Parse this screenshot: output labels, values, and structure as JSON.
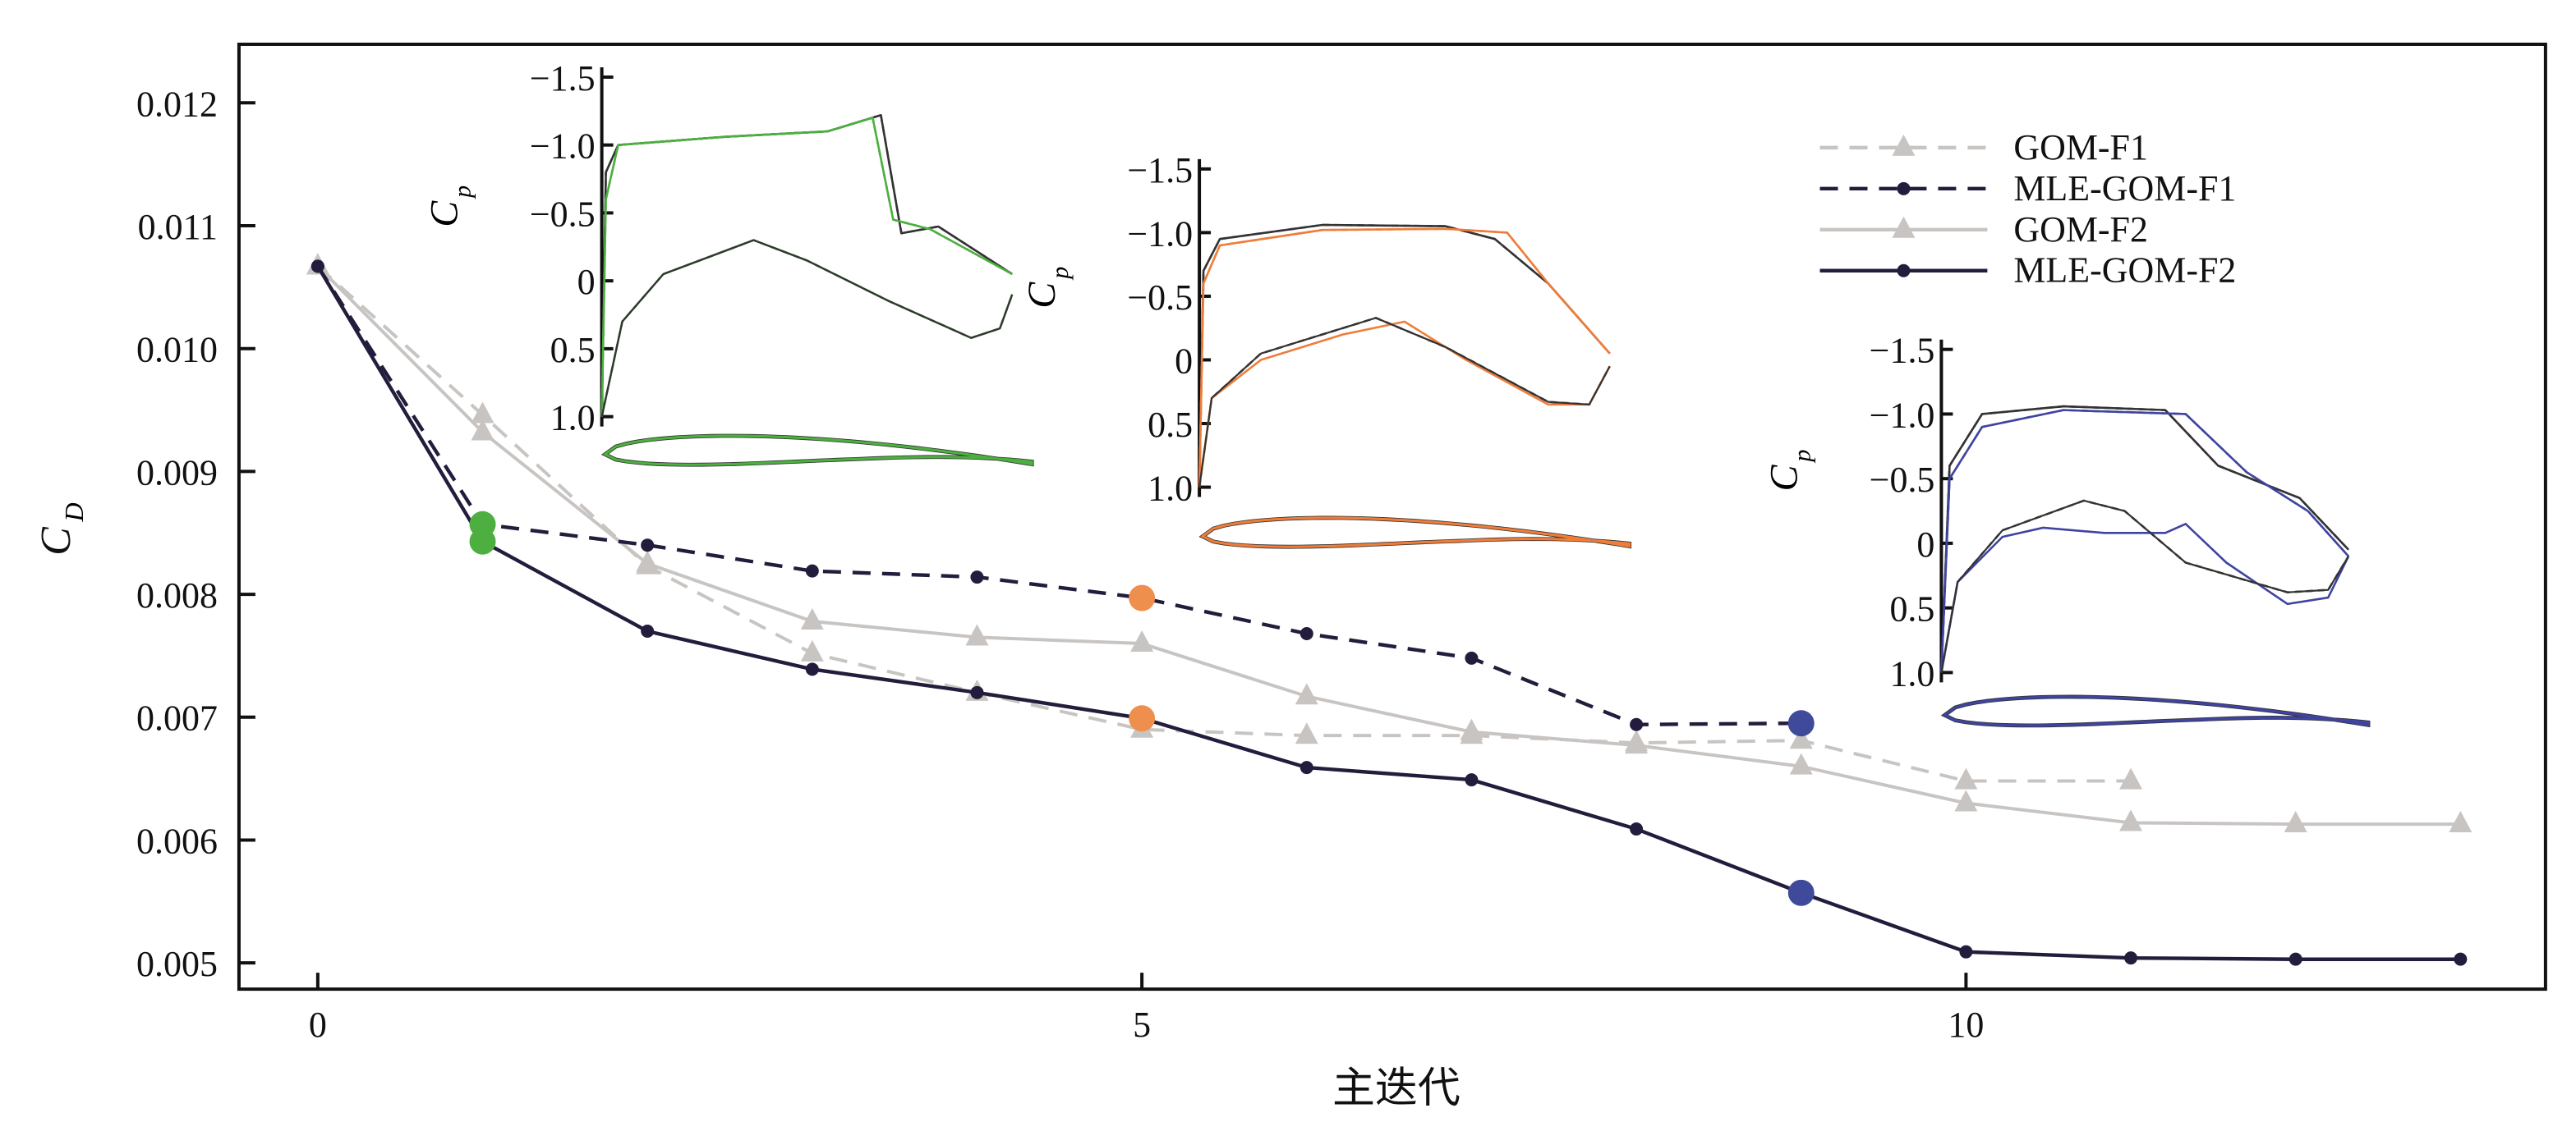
{
  "chart_data": {
    "type": "line",
    "title": "",
    "xlabel": "主迭代",
    "ylabel": "C",
    "ylabel_sub": "D",
    "xlim": [
      -0.5,
      13.5
    ],
    "ylim": [
      0.0048,
      0.0125
    ],
    "xticks": [
      0,
      5,
      10
    ],
    "xtick_labels": [
      "0",
      "5",
      "10"
    ],
    "yticks": [
      0.005,
      0.006,
      0.007,
      0.008,
      0.009,
      0.01,
      0.011,
      0.012
    ],
    "ytick_labels": [
      "0.005",
      "0.006",
      "0.007",
      "0.008",
      "0.009",
      "0.010",
      "0.011",
      "0.012"
    ],
    "grid": false,
    "legend_position": "top-right",
    "series": [
      {
        "name": "GOM-F1",
        "style": "dashed",
        "marker": "triangle",
        "color": "#c8c4c2",
        "x": [
          0,
          1,
          2,
          3,
          4,
          5,
          6,
          7,
          8,
          9,
          10,
          11
        ],
        "values": [
          0.01067,
          0.00946,
          0.00823,
          0.00752,
          0.0072,
          0.0069,
          0.00685,
          0.00685,
          0.00679,
          0.00681,
          0.00648,
          0.00648
        ]
      },
      {
        "name": "MLE-GOM-F1",
        "style": "dashed",
        "marker": "dot",
        "color": "#231c3c",
        "x": [
          0,
          1,
          2,
          3,
          4,
          5,
          6,
          7,
          8,
          9
        ],
        "values": [
          0.01067,
          0.00857,
          0.0084,
          0.00819,
          0.00814,
          0.00797,
          0.00768,
          0.00748,
          0.00694,
          0.00695
        ]
      },
      {
        "name": "GOM-F2",
        "style": "solid",
        "marker": "triangle",
        "color": "#c8c4c2",
        "x": [
          0,
          1,
          2,
          3,
          4,
          5,
          6,
          7,
          8,
          9,
          10,
          11,
          12,
          13
        ],
        "values": [
          0.01067,
          0.00932,
          0.00825,
          0.00778,
          0.00765,
          0.0076,
          0.00717,
          0.00688,
          0.00677,
          0.0066,
          0.0063,
          0.00614,
          0.00613,
          0.00613
        ]
      },
      {
        "name": "MLE-GOM-F2",
        "style": "solid",
        "marker": "dot",
        "color": "#231c3c",
        "x": [
          0,
          1,
          2,
          3,
          4,
          5,
          6,
          7,
          8,
          9,
          10,
          11,
          12,
          13
        ],
        "values": [
          0.01067,
          0.00843,
          0.0077,
          0.00739,
          0.0072,
          0.00699,
          0.00659,
          0.00649,
          0.00609,
          0.00557,
          0.00509,
          0.00504,
          0.00503,
          0.00503
        ]
      }
    ],
    "highlights": [
      {
        "x": 1,
        "values": [
          0.00857,
          0.00843
        ],
        "color": "#4caf3f"
      },
      {
        "x": 5,
        "values": [
          0.00797,
          0.00699
        ],
        "color": "#ef8f4e"
      },
      {
        "x": 9,
        "values": [
          0.00695,
          0.00557
        ],
        "color": "#3f4a9a"
      }
    ],
    "insets": [
      {
        "ylabel": "C",
        "ylabel_sub": "p",
        "ylim": [
          -1.5,
          1.0
        ],
        "ytick_labels": [
          "−1.5",
          "−1.0",
          "−0.5",
          "0",
          "0.5",
          "1.0"
        ],
        "color": "#4caf3f",
        "upper": [
          [
            0,
            1.0
          ],
          [
            0.01,
            -0.6
          ],
          [
            0.04,
            -1.0
          ],
          [
            0.3,
            -1.06
          ],
          [
            0.55,
            -1.1
          ],
          [
            0.66,
            -1.2
          ],
          [
            0.71,
            -0.45
          ],
          [
            0.8,
            -0.38
          ],
          [
            1.0,
            -0.05
          ]
        ],
        "lower": [
          [
            0,
            1.0
          ],
          [
            0.05,
            0.3
          ],
          [
            0.15,
            -0.05
          ],
          [
            0.37,
            -0.3
          ],
          [
            0.5,
            -0.15
          ],
          [
            0.7,
            0.15
          ],
          [
            0.9,
            0.42
          ],
          [
            0.97,
            0.35
          ],
          [
            1.0,
            0.1
          ]
        ],
        "base_upper": [
          [
            0,
            1.0
          ],
          [
            0.01,
            -0.8
          ],
          [
            0.04,
            -1.0
          ],
          [
            0.3,
            -1.06
          ],
          [
            0.55,
            -1.1
          ],
          [
            0.68,
            -1.22
          ],
          [
            0.73,
            -0.35
          ],
          [
            0.82,
            -0.4
          ],
          [
            1.0,
            -0.05
          ]
        ],
        "base_lower": [
          [
            0,
            1.0
          ],
          [
            0.05,
            0.3
          ],
          [
            0.15,
            -0.05
          ],
          [
            0.37,
            -0.3
          ],
          [
            0.5,
            -0.15
          ],
          [
            0.7,
            0.15
          ],
          [
            0.9,
            0.42
          ],
          [
            0.97,
            0.35
          ],
          [
            1.0,
            0.1
          ]
        ]
      },
      {
        "ylabel": "C",
        "ylabel_sub": "p",
        "ylim": [
          -1.5,
          1.0
        ],
        "ytick_labels": [
          "−1.5",
          "−1.0",
          "−0.5",
          "0",
          "0.5",
          "1.0"
        ],
        "color": "#ef7d3a",
        "upper": [
          [
            0,
            1.0
          ],
          [
            0.01,
            -0.6
          ],
          [
            0.05,
            -0.9
          ],
          [
            0.3,
            -1.02
          ],
          [
            0.6,
            -1.03
          ],
          [
            0.75,
            -1.0
          ],
          [
            0.85,
            -0.6
          ],
          [
            1.0,
            -0.05
          ]
        ],
        "lower": [
          [
            0,
            1.0
          ],
          [
            0.03,
            0.3
          ],
          [
            0.15,
            0.0
          ],
          [
            0.35,
            -0.2
          ],
          [
            0.5,
            -0.3
          ],
          [
            0.65,
            0.0
          ],
          [
            0.85,
            0.35
          ],
          [
            0.95,
            0.35
          ],
          [
            1.0,
            0.05
          ]
        ],
        "base_upper": [
          [
            0,
            1.0
          ],
          [
            0.01,
            -0.7
          ],
          [
            0.05,
            -0.95
          ],
          [
            0.3,
            -1.06
          ],
          [
            0.6,
            -1.05
          ],
          [
            0.72,
            -0.95
          ],
          [
            0.85,
            -0.6
          ],
          [
            1.0,
            -0.05
          ]
        ],
        "base_lower": [
          [
            0,
            1.0
          ],
          [
            0.03,
            0.3
          ],
          [
            0.15,
            -0.05
          ],
          [
            0.35,
            -0.25
          ],
          [
            0.43,
            -0.33
          ],
          [
            0.6,
            -0.1
          ],
          [
            0.85,
            0.33
          ],
          [
            0.95,
            0.35
          ],
          [
            1.0,
            0.05
          ]
        ]
      },
      {
        "ylabel": "C",
        "ylabel_sub": "p",
        "ylim": [
          -1.5,
          1.0
        ],
        "ytick_labels": [
          "−1.5",
          "−1.0",
          "−0.5",
          "0",
          "0.5",
          "1.0"
        ],
        "color": "#3f44a0",
        "upper": [
          [
            0,
            1.0
          ],
          [
            0.02,
            -0.5
          ],
          [
            0.1,
            -0.9
          ],
          [
            0.3,
            -1.03
          ],
          [
            0.6,
            -1.0
          ],
          [
            0.75,
            -0.55
          ],
          [
            0.9,
            -0.25
          ],
          [
            1.0,
            0.1
          ]
        ],
        "lower": [
          [
            0,
            1.0
          ],
          [
            0.04,
            0.3
          ],
          [
            0.15,
            -0.05
          ],
          [
            0.25,
            -0.12
          ],
          [
            0.4,
            -0.08
          ],
          [
            0.55,
            -0.08
          ],
          [
            0.6,
            -0.15
          ],
          [
            0.7,
            0.15
          ],
          [
            0.85,
            0.47
          ],
          [
            0.95,
            0.42
          ],
          [
            1.0,
            0.1
          ]
        ],
        "base_upper": [
          [
            0,
            1.0
          ],
          [
            0.02,
            -0.6
          ],
          [
            0.1,
            -1.0
          ],
          [
            0.3,
            -1.06
          ],
          [
            0.55,
            -1.03
          ],
          [
            0.68,
            -0.6
          ],
          [
            0.88,
            -0.35
          ],
          [
            1.0,
            0.05
          ]
        ],
        "base_lower": [
          [
            0,
            1.0
          ],
          [
            0.04,
            0.3
          ],
          [
            0.15,
            -0.1
          ],
          [
            0.35,
            -0.33
          ],
          [
            0.45,
            -0.25
          ],
          [
            0.6,
            0.15
          ],
          [
            0.85,
            0.38
          ],
          [
            0.95,
            0.36
          ],
          [
            1.0,
            0.1
          ]
        ]
      }
    ]
  }
}
